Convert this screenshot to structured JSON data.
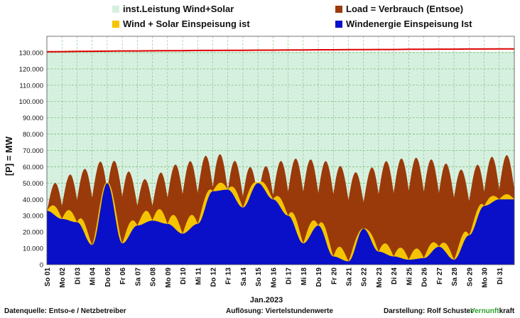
{
  "legend": {
    "installed": "inst.Leistung Wind+Solar",
    "load": "Load =  Verbrauch (Entsoe)",
    "wind_solar": "Wind + Solar Einspeisung ist",
    "wind": "Windenergie Einspeisung Ist"
  },
  "colors": {
    "installed_fill": "#d6f0df",
    "installed_line": "#dd0000",
    "load": "#9a3a0a",
    "solar": "#f5c400",
    "wind": "#0a10c8",
    "grid": "#7fbf7f"
  },
  "footer": {
    "source": "Datenquelle:  Entso-e  / Netzbetreiber",
    "resolution": "Auflösung: Viertelstundenwerte",
    "author": "Darstellung:  Rolf Schuster",
    "brand_green": "Vernunft",
    "brand_rest": "kraft"
  },
  "chart_data": {
    "type": "area",
    "ylabel": "[P] = MW",
    "xlabel": "Jan.2023",
    "ylim": [
      0,
      140000
    ],
    "yticks": [
      "0",
      "10.000",
      "20.000",
      "30.000",
      "40.000",
      "50.000",
      "60.000",
      "70.000",
      "80.000",
      "90.000",
      "100.000",
      "110.000",
      "120.000",
      "130.000"
    ],
    "grid": true,
    "categories": [
      "So 01",
      "Mo 02",
      "Di 03",
      "Mi 04",
      "Do 05",
      "Fr 06",
      "Sa 07",
      "So 08",
      "Mo 09",
      "Di 10",
      "Mi 11",
      "Do 12",
      "Fr 13",
      "Sa 14",
      "So 15",
      "Mo 16",
      "Di 17",
      "Mi 18",
      "Do 19",
      "Fr 20",
      "Sa 21",
      "So 22",
      "Mo 23",
      "Di 24",
      "Mi 25",
      "Do 26",
      "Fr 27",
      "Sa 28",
      "So 29",
      "Mo 30",
      "Di 31"
    ],
    "series": [
      {
        "name": "inst.Leistung Wind+Solar",
        "values": [
          130500,
          130600,
          130700,
          130800,
          130900,
          131000,
          131000,
          131100,
          131200,
          131200,
          131300,
          131300,
          131400,
          131400,
          131500,
          131500,
          131600,
          131600,
          131700,
          131700,
          131800,
          131800,
          131900,
          131900,
          132000,
          132000,
          132100,
          132100,
          132200,
          132200,
          132300
        ]
      },
      {
        "name": "Load =  Verbrauch (Entsoe)",
        "values": [
          45000,
          50000,
          55000,
          57000,
          63000,
          58000,
          50000,
          50000,
          57000,
          60000,
          61000,
          66000,
          63000,
          58000,
          56000,
          59000,
          62000,
          62000,
          61000,
          60000,
          55000,
          53000,
          60000,
          61000,
          63000,
          62000,
          61000,
          57000,
          54000,
          62000,
          64000
        ]
      },
      {
        "name": "Wind + Solar Einspeisung ist",
        "values": [
          36000,
          32000,
          30000,
          16000,
          52000,
          18000,
          28000,
          32000,
          30000,
          24000,
          30000,
          48000,
          49000,
          39000,
          52000,
          43000,
          34000,
          18000,
          28000,
          10000,
          6000,
          23000,
          12000,
          9000,
          7000,
          8000,
          14000,
          7000,
          22000,
          39000,
          42000
        ]
      },
      {
        "name": "Windenergie Einspeisung Ist",
        "values": [
          33000,
          28000,
          26000,
          12000,
          50000,
          13000,
          24000,
          27000,
          25000,
          19000,
          25000,
          45000,
          46000,
          35000,
          50000,
          40000,
          30000,
          13000,
          24000,
          5000,
          2000,
          22000,
          8000,
          5000,
          3000,
          4000,
          11000,
          3000,
          18000,
          36000,
          40000
        ]
      }
    ]
  }
}
